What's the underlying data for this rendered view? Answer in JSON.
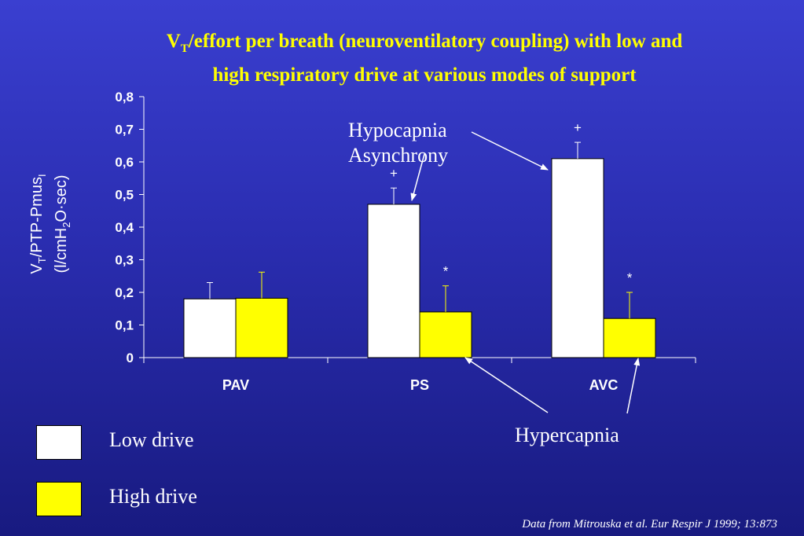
{
  "title": {
    "line1_symbol": "V",
    "line1_sub": "T",
    "line1_rest": "/effort per breath (neuroventilatory coupling) with low and",
    "line2": "high respiratory drive at various modes of support"
  },
  "chart_data": {
    "type": "bar",
    "title": "",
    "categories": [
      "PAV",
      "PS",
      "AVC"
    ],
    "series": [
      {
        "name": "Low drive",
        "values": [
          0.18,
          0.47,
          0.61
        ],
        "errors": [
          0.05,
          0.05,
          0.05
        ],
        "markers": [
          "",
          "+",
          "+"
        ],
        "color": "#ffffff"
      },
      {
        "name": "High drive",
        "values": [
          0.182,
          0.14,
          0.12
        ],
        "errors": [
          0.08,
          0.08,
          0.08
        ],
        "markers": [
          "",
          "*",
          "*"
        ],
        "color": "#ffff00"
      }
    ],
    "ylim": [
      0,
      0.8
    ],
    "yticks": [
      "0",
      "0,1",
      "0,2",
      "0,3",
      "0,4",
      "0,5",
      "0,6",
      "0,7",
      "0,8"
    ],
    "ylabel": {
      "line1": "V",
      "line1_sub": "T",
      "line1_rest": "/PTP-Pmus",
      "line1_sub2": "I",
      "line2_a": "(l/cmH",
      "line2_sub": "2",
      "line2_b": "O·sec)"
    },
    "grid": false
  },
  "legend": {
    "items": [
      {
        "label": "Low drive",
        "color": "#ffffff"
      },
      {
        "label": "High drive",
        "color": "#ffff00"
      }
    ]
  },
  "annotations": {
    "hypocapnia_line1": "Hypocapnia",
    "hypocapnia_line2": "Asynchrony",
    "hypercapnia": "Hypercapnia"
  },
  "source": "Data from Mitrouska et al. Eur Respir J 1999; 13:873"
}
